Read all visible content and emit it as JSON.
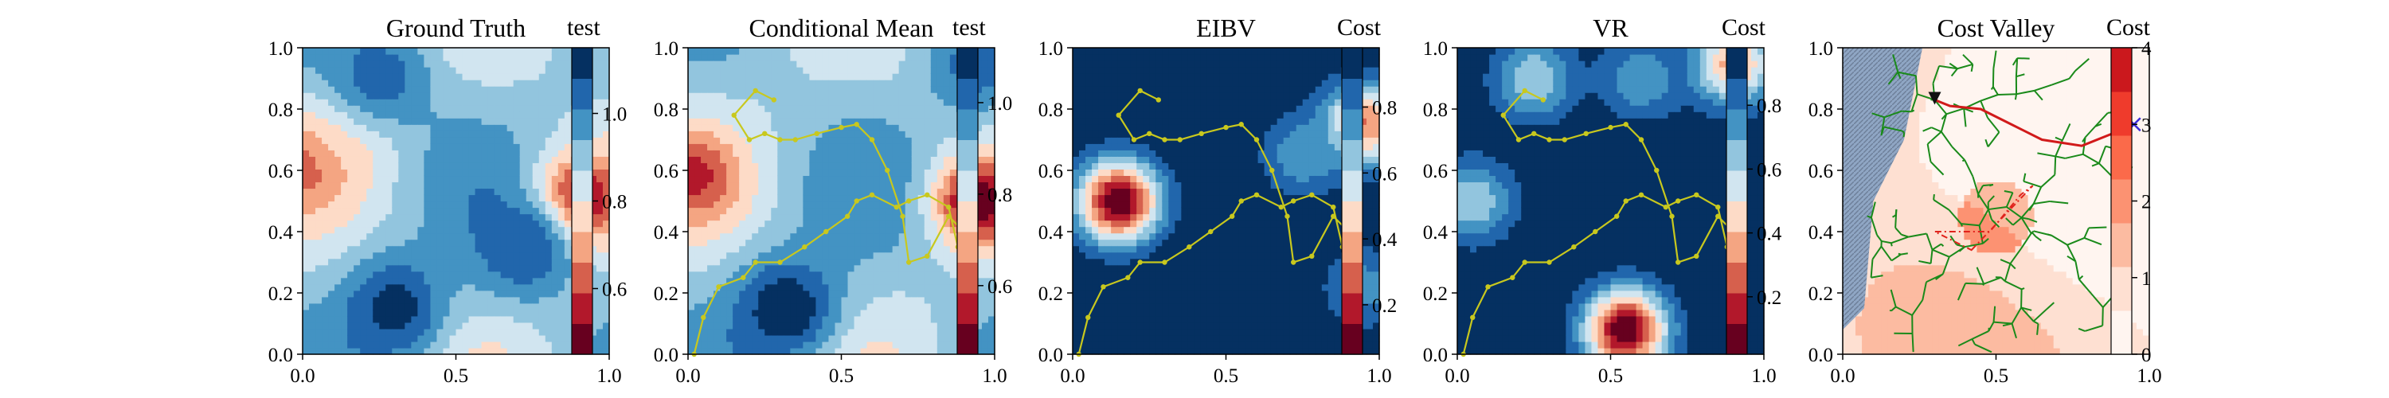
{
  "chart_data": [
    {
      "type": "heatmap",
      "title": "Ground Truth",
      "colorbar_label": "test",
      "colormap": "RdBu",
      "xlim": [
        0.0,
        1.0
      ],
      "ylim": [
        0.0,
        1.0
      ],
      "xticks": [
        "0.0",
        "0.5",
        "1.0"
      ],
      "yticks": [
        "0.0",
        "0.2",
        "0.4",
        "0.6",
        "0.8",
        "1.0"
      ],
      "colorbar_range": [
        0.45,
        1.15
      ],
      "colorbar_ticks": [
        "0.6",
        "0.8",
        "1.0"
      ],
      "colorbar_tick_values": [
        0.6,
        0.8,
        1.0
      ],
      "features": [
        {
          "kind": "low",
          "x": 0.9,
          "y": 0.5,
          "value": 0.45
        },
        {
          "kind": "low",
          "x": 0.0,
          "y": 0.62,
          "value": 0.6
        },
        {
          "kind": "low",
          "x": 0.15,
          "y": 0.72,
          "value": 0.72
        },
        {
          "kind": "high",
          "x": 0.3,
          "y": 0.15,
          "value": 1.12
        },
        {
          "kind": "high",
          "x": 0.72,
          "y": 0.35,
          "value": 1.08
        },
        {
          "kind": "high",
          "x": 0.25,
          "y": 0.9,
          "value": 1.05
        }
      ]
    },
    {
      "type": "heatmap",
      "title": "Conditional Mean",
      "colorbar_label": "test",
      "colormap": "RdBu",
      "xlim": [
        0.0,
        1.0
      ],
      "ylim": [
        0.0,
        1.0
      ],
      "xticks": [
        "0.0",
        "0.5",
        "1.0"
      ],
      "yticks": [
        "0.0",
        "0.2",
        "0.4",
        "0.6",
        "0.8",
        "1.0"
      ],
      "colorbar_range": [
        0.45,
        1.12
      ],
      "colorbar_ticks": [
        "0.6",
        "0.8",
        "1.0"
      ],
      "colorbar_tick_values": [
        0.6,
        0.8,
        1.0
      ],
      "features": [
        {
          "kind": "low",
          "x": 0.95,
          "y": 0.5,
          "value": 0.45
        },
        {
          "kind": "low",
          "x": 0.02,
          "y": 0.58,
          "value": 0.55
        },
        {
          "kind": "high",
          "x": 0.32,
          "y": 0.15,
          "value": 1.12
        },
        {
          "kind": "high",
          "x": 0.95,
          "y": 0.95,
          "value": 1.02
        }
      ],
      "path": {
        "x": [
          0.02,
          0.05,
          0.1,
          0.18,
          0.22,
          0.3,
          0.38,
          0.45,
          0.52,
          0.55,
          0.6,
          0.68,
          0.72,
          0.78,
          0.85,
          0.88,
          0.9,
          0.85,
          0.78,
          0.72,
          0.7,
          0.65,
          0.6,
          0.55,
          0.5,
          0.42,
          0.35,
          0.3,
          0.25,
          0.2,
          0.15,
          0.22,
          0.28
        ],
        "y": [
          0.0,
          0.12,
          0.22,
          0.25,
          0.3,
          0.3,
          0.35,
          0.4,
          0.45,
          0.5,
          0.52,
          0.48,
          0.5,
          0.52,
          0.48,
          0.35,
          0.4,
          0.45,
          0.32,
          0.3,
          0.45,
          0.6,
          0.7,
          0.75,
          0.74,
          0.72,
          0.7,
          0.7,
          0.72,
          0.7,
          0.78,
          0.86,
          0.83
        ]
      }
    },
    {
      "type": "heatmap",
      "title": "EIBV",
      "colorbar_label": "Cost",
      "colormap": "RdBu",
      "xlim": [
        0.0,
        1.0
      ],
      "ylim": [
        0.0,
        1.0
      ],
      "xticks": [
        "0.0",
        "0.5",
        "1.0"
      ],
      "yticks": [
        "0.0",
        "0.2",
        "0.4",
        "0.6",
        "0.8",
        "1.0"
      ],
      "colorbar_range": [
        0.05,
        0.98
      ],
      "colorbar_ticks": [
        "0.2",
        "0.4",
        "0.6",
        "0.8"
      ],
      "colorbar_tick_values": [
        0.2,
        0.4,
        0.6,
        0.8
      ],
      "base_value": 0.98,
      "features": [
        {
          "kind": "low",
          "x": 0.15,
          "y": 0.5,
          "value": 0.05
        },
        {
          "kind": "low",
          "x": 0.95,
          "y": 0.75,
          "value": 0.3
        },
        {
          "kind": "low",
          "x": 0.95,
          "y": 0.22,
          "value": 0.75
        },
        {
          "kind": "low",
          "x": 0.75,
          "y": 0.65,
          "value": 0.72
        }
      ],
      "path": {
        "x": [
          0.02,
          0.05,
          0.1,
          0.18,
          0.22,
          0.3,
          0.38,
          0.45,
          0.52,
          0.55,
          0.6,
          0.68,
          0.72,
          0.78,
          0.85,
          0.88,
          0.9,
          0.85,
          0.78,
          0.72,
          0.7,
          0.65,
          0.6,
          0.55,
          0.5,
          0.42,
          0.35,
          0.3,
          0.25,
          0.2,
          0.15,
          0.22,
          0.28
        ],
        "y": [
          0.0,
          0.12,
          0.22,
          0.25,
          0.3,
          0.3,
          0.35,
          0.4,
          0.45,
          0.5,
          0.52,
          0.48,
          0.5,
          0.52,
          0.48,
          0.35,
          0.4,
          0.45,
          0.32,
          0.3,
          0.45,
          0.6,
          0.7,
          0.75,
          0.74,
          0.72,
          0.7,
          0.7,
          0.72,
          0.7,
          0.78,
          0.86,
          0.83
        ]
      }
    },
    {
      "type": "heatmap",
      "title": "VR",
      "colorbar_label": "Cost",
      "colormap": "RdBu",
      "xlim": [
        0.0,
        1.0
      ],
      "ylim": [
        0.0,
        1.0
      ],
      "xticks": [
        "0.0",
        "0.5",
        "1.0"
      ],
      "yticks": [
        "0.0",
        "0.2",
        "0.4",
        "0.6",
        "0.8",
        "1.0"
      ],
      "colorbar_range": [
        0.02,
        0.98
      ],
      "colorbar_ticks": [
        "0.2",
        "0.4",
        "0.6",
        "0.8"
      ],
      "colorbar_tick_values": [
        0.2,
        0.4,
        0.6,
        0.8
      ],
      "base_value": 0.98,
      "features": [
        {
          "kind": "low",
          "x": 0.55,
          "y": 0.08,
          "value": 0.02
        },
        {
          "kind": "low",
          "x": 0.05,
          "y": 0.5,
          "value": 0.6
        },
        {
          "kind": "low",
          "x": 0.9,
          "y": 0.95,
          "value": 0.35
        },
        {
          "kind": "low",
          "x": 0.25,
          "y": 0.9,
          "value": 0.6
        },
        {
          "kind": "low",
          "x": 0.6,
          "y": 0.9,
          "value": 0.7
        }
      ],
      "path": {
        "x": [
          0.02,
          0.05,
          0.1,
          0.18,
          0.22,
          0.3,
          0.38,
          0.45,
          0.52,
          0.55,
          0.6,
          0.68,
          0.72,
          0.78,
          0.85,
          0.88,
          0.9,
          0.85,
          0.78,
          0.72,
          0.7,
          0.65,
          0.6,
          0.55,
          0.5,
          0.42,
          0.35,
          0.3,
          0.25,
          0.2,
          0.15,
          0.22,
          0.28
        ],
        "y": [
          0.0,
          0.12,
          0.22,
          0.25,
          0.3,
          0.3,
          0.35,
          0.4,
          0.45,
          0.5,
          0.52,
          0.48,
          0.5,
          0.52,
          0.48,
          0.35,
          0.4,
          0.45,
          0.32,
          0.3,
          0.45,
          0.6,
          0.7,
          0.75,
          0.74,
          0.72,
          0.7,
          0.7,
          0.72,
          0.7,
          0.78,
          0.86,
          0.83
        ]
      }
    },
    {
      "type": "heatmap",
      "title": "Cost Valley",
      "colorbar_label": "Cost",
      "colormap": "Reds",
      "xlim": [
        0.0,
        1.0
      ],
      "ylim": [
        0.0,
        1.0
      ],
      "xticks": [
        "0.0",
        "0.5",
        "1.0"
      ],
      "yticks": [
        "0.0",
        "0.2",
        "0.4",
        "0.6",
        "0.8",
        "1.0"
      ],
      "colorbar_range": [
        0,
        4
      ],
      "colorbar_ticks": [
        "0",
        "1",
        "2",
        "3",
        "4"
      ],
      "colorbar_tick_values": [
        0,
        1,
        2,
        3,
        4
      ],
      "obstacle_region": "left strip, grey hatched",
      "tree_color": "green",
      "start": {
        "x": 0.3,
        "y": 0.83
      },
      "goal": {
        "x": 0.95,
        "y": 0.75
      },
      "route": {
        "x": [
          0.3,
          0.35,
          0.45,
          0.55,
          0.65,
          0.78,
          0.88,
          0.95
        ],
        "y": [
          0.83,
          0.81,
          0.8,
          0.75,
          0.7,
          0.68,
          0.72,
          0.75
        ]
      },
      "polygon": {
        "x": [
          0.42,
          0.62,
          0.58,
          0.48,
          0.3,
          0.42
        ],
        "y": [
          0.34,
          0.55,
          0.52,
          0.4,
          0.4,
          0.34
        ]
      }
    }
  ]
}
